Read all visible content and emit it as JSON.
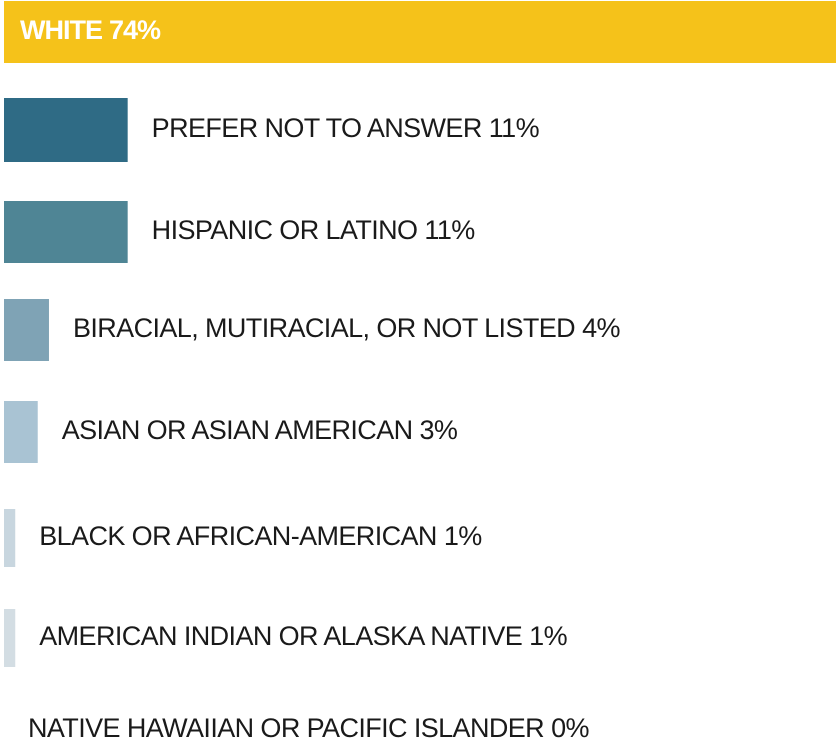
{
  "chart_data": {
    "type": "bar",
    "orientation": "horizontal",
    "categories": [
      "WHITE",
      "PREFER NOT TO ANSWER",
      "HISPANIC OR LATINO",
      "BIRACIAL, MUTIRACIAL, OR NOT LISTED",
      "ASIAN OR ASIAN AMERICAN",
      "BLACK OR AFRICAN-AMERICAN",
      "AMERICAN INDIAN OR ALASKA NATIVE",
      "NATIVE HAWAIIAN OR PACIFIC ISLANDER"
    ],
    "values": [
      74,
      11,
      11,
      4,
      3,
      1,
      1,
      0
    ],
    "value_labels": [
      "74%",
      "11%",
      "11%",
      "4%",
      "3%",
      "1%",
      "1%",
      "0%"
    ],
    "colors": [
      "#f5c21a",
      "#2f6b85",
      "#4f8595",
      "#7fa3b5",
      "#a9c3d3",
      "#c8d6df",
      "#d3dde3",
      "#d3dde3"
    ]
  }
}
